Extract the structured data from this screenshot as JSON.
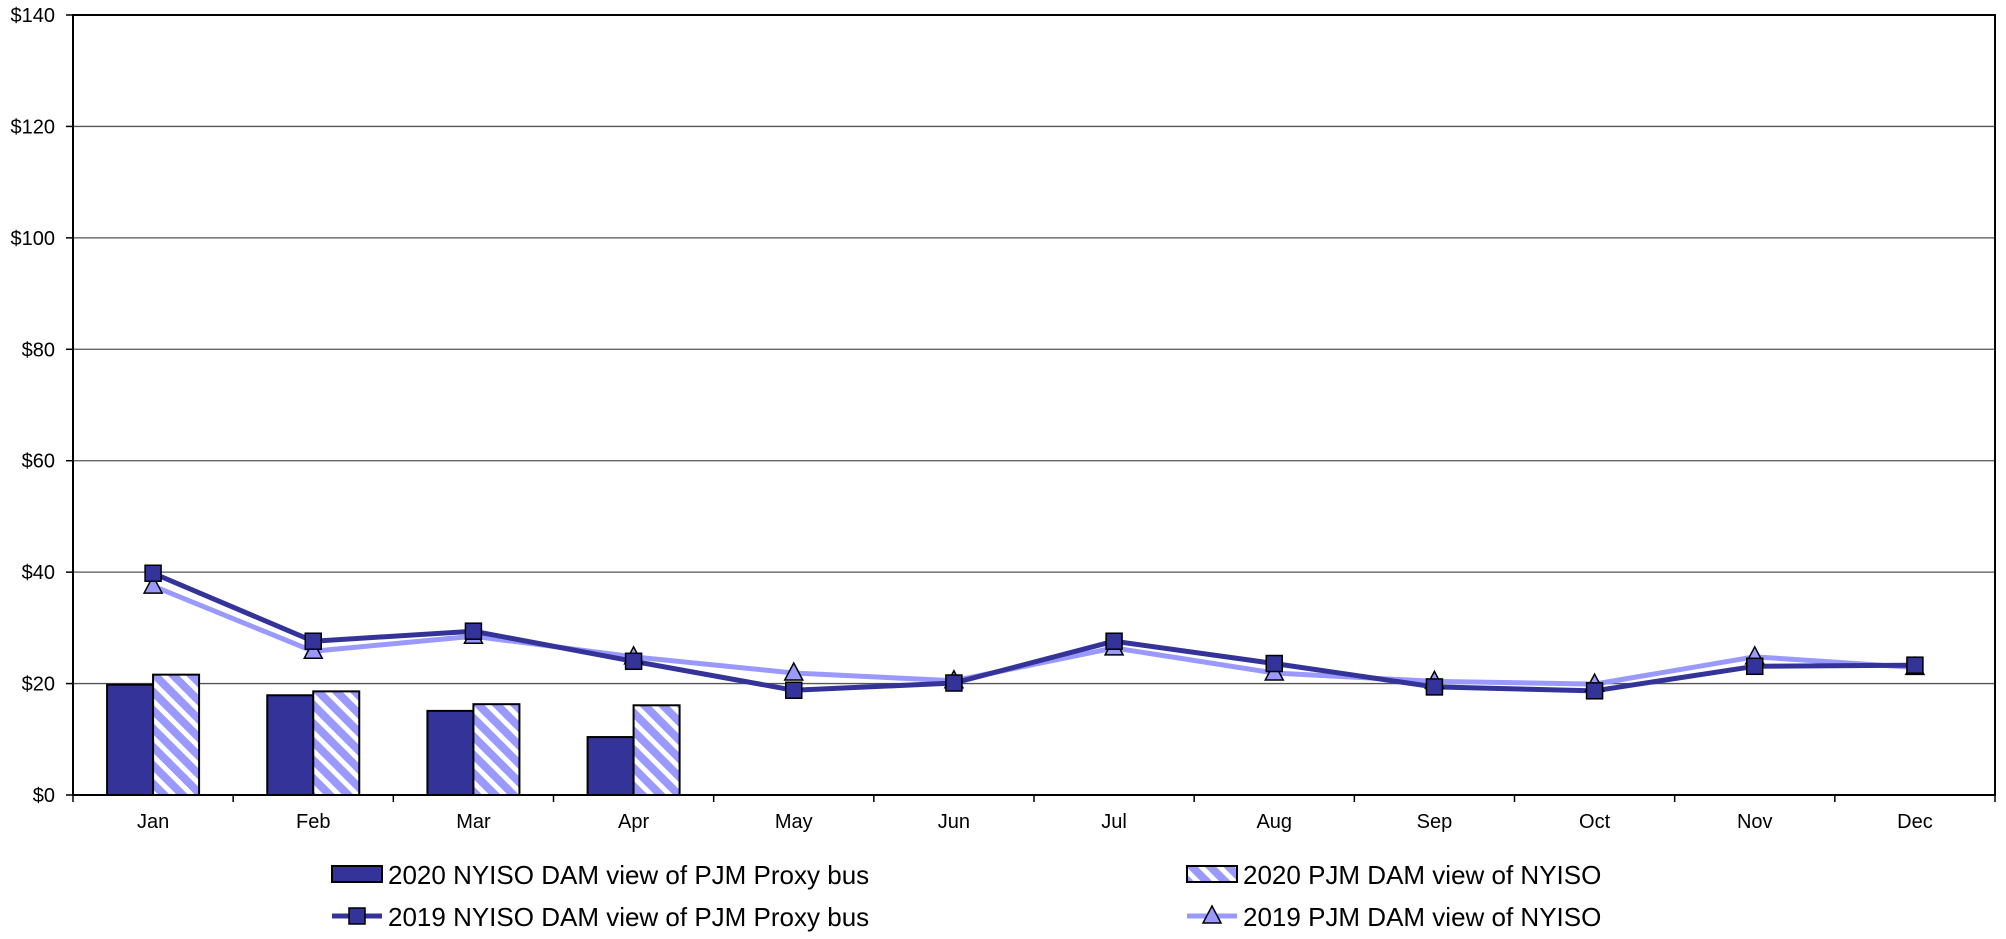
{
  "chart_data": {
    "type": "bar+line",
    "title": "",
    "xlabel": "",
    "ylabel": "",
    "categories": [
      "Jan",
      "Feb",
      "Mar",
      "Apr",
      "May",
      "Jun",
      "Jul",
      "Aug",
      "Sep",
      "Oct",
      "Nov",
      "Dec"
    ],
    "ylim": [
      0,
      140
    ],
    "yticks": [
      0,
      20,
      40,
      60,
      80,
      100,
      120,
      140
    ],
    "ytick_labels": [
      "$0",
      "$20",
      "$40",
      "$60",
      "$80",
      "$100",
      "$120",
      "$140"
    ],
    "grid": true,
    "legend_position": "bottom",
    "colors": {
      "nyiso_2020": "#333399",
      "pjm_2020": "#9999ff",
      "nyiso_2019": "#333399",
      "pjm_2019": "#9999ff"
    },
    "bar_series": [
      {
        "name": "2020 NYISO DAM view of PJM Proxy bus",
        "style": "solid",
        "values": [
          19.8,
          17.9,
          15.1,
          10.4
        ]
      },
      {
        "name": "2020 PJM DAM view of NYISO",
        "style": "hatched",
        "values": [
          21.6,
          18.6,
          16.3,
          16.1
        ]
      }
    ],
    "line_series": [
      {
        "name": "2019 NYISO DAM view of PJM Proxy bus",
        "marker": "square",
        "values": [
          39.8,
          27.6,
          29.4,
          24.0,
          18.8,
          20.1,
          27.6,
          23.6,
          19.4,
          18.7,
          23.1,
          23.3
        ]
      },
      {
        "name": "2019 PJM DAM view of NYISO",
        "marker": "triangle",
        "values": [
          37.5,
          25.8,
          28.5,
          24.8,
          21.9,
          20.5,
          26.4,
          21.9,
          20.4,
          19.9,
          24.8,
          22.9
        ]
      }
    ]
  }
}
